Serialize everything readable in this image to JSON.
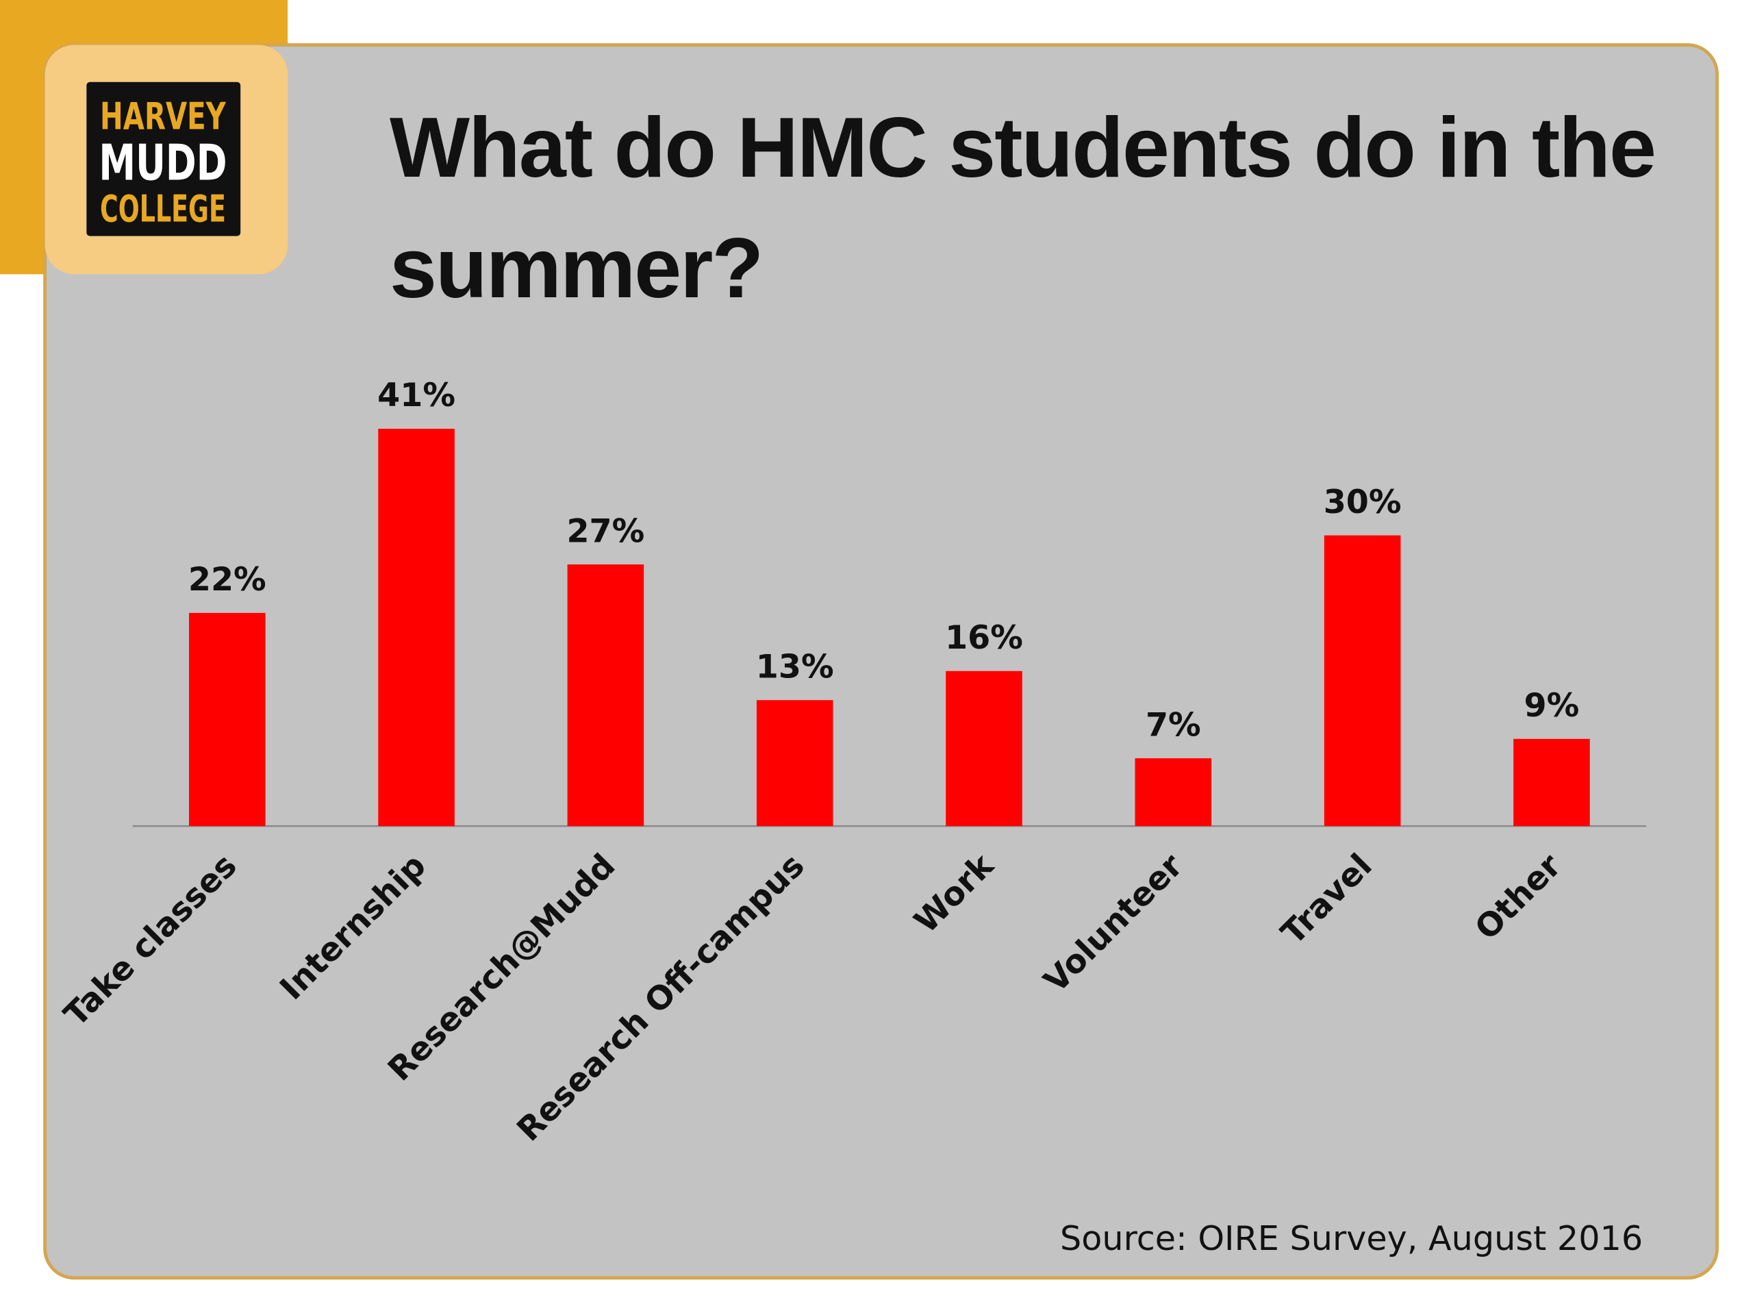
{
  "logo": {
    "lines": [
      "HARVEY",
      "MUDD",
      "COLLEGE"
    ]
  },
  "chart_data": {
    "type": "bar",
    "title": "What do HMC students do in the summer?",
    "categories": [
      "Take classes",
      "Internship",
      "Research@Mudd",
      "Research Off-campus",
      "Work",
      "Volunteer",
      "Travel",
      "Other"
    ],
    "values": [
      22,
      41,
      27,
      13,
      16,
      7,
      30,
      9
    ],
    "value_labels": [
      "22%",
      "41%",
      "27%",
      "13%",
      "16%",
      "7%",
      "30%",
      "9%"
    ],
    "color": "#ff0000",
    "ylim": [
      0,
      45
    ],
    "source": "Source:  OIRE Survey, August 2016"
  }
}
